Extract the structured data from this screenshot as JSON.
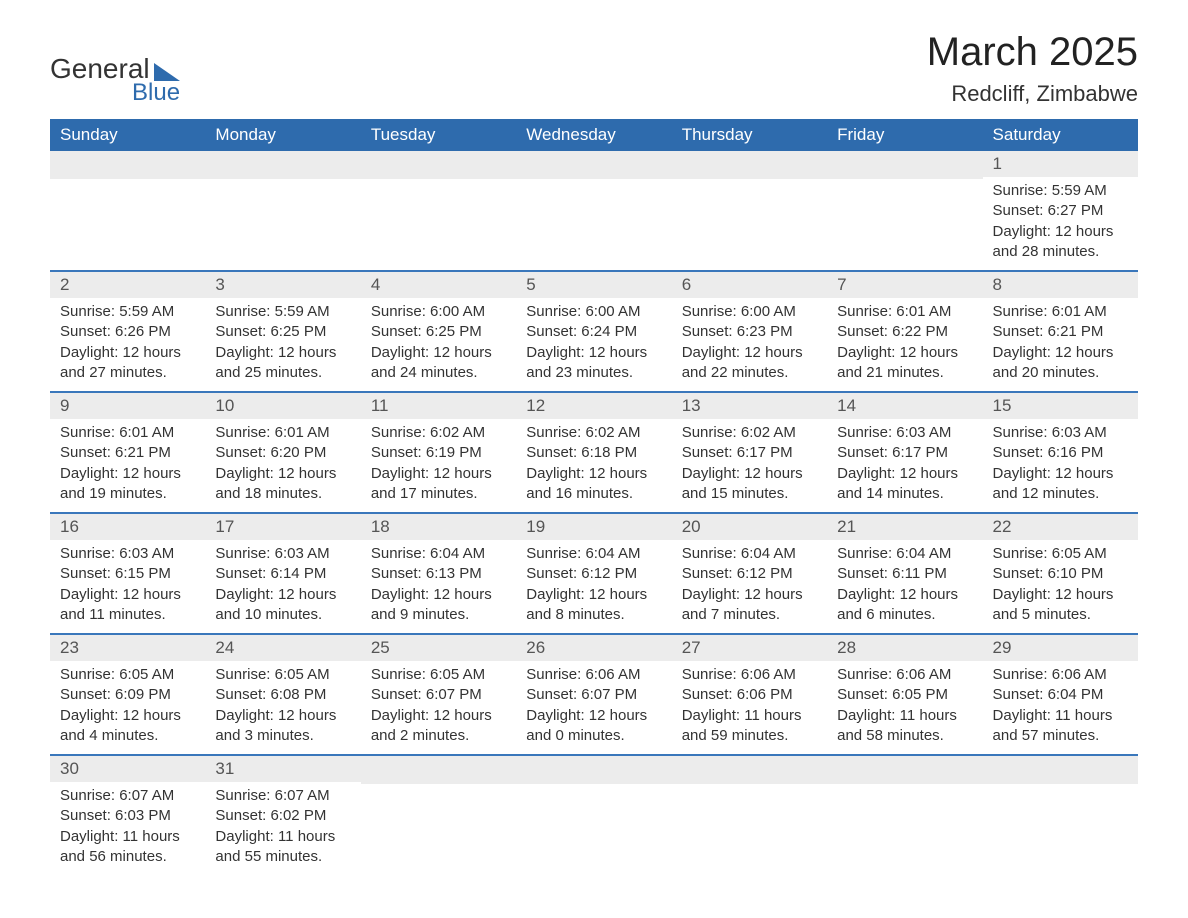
{
  "logo": {
    "text_general": "General",
    "text_blue": "Blue",
    "triangle_color": "#2e6bad"
  },
  "title": "March 2025",
  "location": "Redcliff, Zimbabwe",
  "colors": {
    "header_bg": "#2e6bad",
    "header_text": "#ffffff",
    "daynum_bg": "#ececec",
    "row_border": "#3a77bb",
    "text": "#333333"
  },
  "day_headers": [
    "Sunday",
    "Monday",
    "Tuesday",
    "Wednesday",
    "Thursday",
    "Friday",
    "Saturday"
  ],
  "weeks": [
    [
      null,
      null,
      null,
      null,
      null,
      null,
      {
        "n": "1",
        "sunrise": "Sunrise: 5:59 AM",
        "sunset": "Sunset: 6:27 PM",
        "dl1": "Daylight: 12 hours",
        "dl2": "and 28 minutes."
      }
    ],
    [
      {
        "n": "2",
        "sunrise": "Sunrise: 5:59 AM",
        "sunset": "Sunset: 6:26 PM",
        "dl1": "Daylight: 12 hours",
        "dl2": "and 27 minutes."
      },
      {
        "n": "3",
        "sunrise": "Sunrise: 5:59 AM",
        "sunset": "Sunset: 6:25 PM",
        "dl1": "Daylight: 12 hours",
        "dl2": "and 25 minutes."
      },
      {
        "n": "4",
        "sunrise": "Sunrise: 6:00 AM",
        "sunset": "Sunset: 6:25 PM",
        "dl1": "Daylight: 12 hours",
        "dl2": "and 24 minutes."
      },
      {
        "n": "5",
        "sunrise": "Sunrise: 6:00 AM",
        "sunset": "Sunset: 6:24 PM",
        "dl1": "Daylight: 12 hours",
        "dl2": "and 23 minutes."
      },
      {
        "n": "6",
        "sunrise": "Sunrise: 6:00 AM",
        "sunset": "Sunset: 6:23 PM",
        "dl1": "Daylight: 12 hours",
        "dl2": "and 22 minutes."
      },
      {
        "n": "7",
        "sunrise": "Sunrise: 6:01 AM",
        "sunset": "Sunset: 6:22 PM",
        "dl1": "Daylight: 12 hours",
        "dl2": "and 21 minutes."
      },
      {
        "n": "8",
        "sunrise": "Sunrise: 6:01 AM",
        "sunset": "Sunset: 6:21 PM",
        "dl1": "Daylight: 12 hours",
        "dl2": "and 20 minutes."
      }
    ],
    [
      {
        "n": "9",
        "sunrise": "Sunrise: 6:01 AM",
        "sunset": "Sunset: 6:21 PM",
        "dl1": "Daylight: 12 hours",
        "dl2": "and 19 minutes."
      },
      {
        "n": "10",
        "sunrise": "Sunrise: 6:01 AM",
        "sunset": "Sunset: 6:20 PM",
        "dl1": "Daylight: 12 hours",
        "dl2": "and 18 minutes."
      },
      {
        "n": "11",
        "sunrise": "Sunrise: 6:02 AM",
        "sunset": "Sunset: 6:19 PM",
        "dl1": "Daylight: 12 hours",
        "dl2": "and 17 minutes."
      },
      {
        "n": "12",
        "sunrise": "Sunrise: 6:02 AM",
        "sunset": "Sunset: 6:18 PM",
        "dl1": "Daylight: 12 hours",
        "dl2": "and 16 minutes."
      },
      {
        "n": "13",
        "sunrise": "Sunrise: 6:02 AM",
        "sunset": "Sunset: 6:17 PM",
        "dl1": "Daylight: 12 hours",
        "dl2": "and 15 minutes."
      },
      {
        "n": "14",
        "sunrise": "Sunrise: 6:03 AM",
        "sunset": "Sunset: 6:17 PM",
        "dl1": "Daylight: 12 hours",
        "dl2": "and 14 minutes."
      },
      {
        "n": "15",
        "sunrise": "Sunrise: 6:03 AM",
        "sunset": "Sunset: 6:16 PM",
        "dl1": "Daylight: 12 hours",
        "dl2": "and 12 minutes."
      }
    ],
    [
      {
        "n": "16",
        "sunrise": "Sunrise: 6:03 AM",
        "sunset": "Sunset: 6:15 PM",
        "dl1": "Daylight: 12 hours",
        "dl2": "and 11 minutes."
      },
      {
        "n": "17",
        "sunrise": "Sunrise: 6:03 AM",
        "sunset": "Sunset: 6:14 PM",
        "dl1": "Daylight: 12 hours",
        "dl2": "and 10 minutes."
      },
      {
        "n": "18",
        "sunrise": "Sunrise: 6:04 AM",
        "sunset": "Sunset: 6:13 PM",
        "dl1": "Daylight: 12 hours",
        "dl2": "and 9 minutes."
      },
      {
        "n": "19",
        "sunrise": "Sunrise: 6:04 AM",
        "sunset": "Sunset: 6:12 PM",
        "dl1": "Daylight: 12 hours",
        "dl2": "and 8 minutes."
      },
      {
        "n": "20",
        "sunrise": "Sunrise: 6:04 AM",
        "sunset": "Sunset: 6:12 PM",
        "dl1": "Daylight: 12 hours",
        "dl2": "and 7 minutes."
      },
      {
        "n": "21",
        "sunrise": "Sunrise: 6:04 AM",
        "sunset": "Sunset: 6:11 PM",
        "dl1": "Daylight: 12 hours",
        "dl2": "and 6 minutes."
      },
      {
        "n": "22",
        "sunrise": "Sunrise: 6:05 AM",
        "sunset": "Sunset: 6:10 PM",
        "dl1": "Daylight: 12 hours",
        "dl2": "and 5 minutes."
      }
    ],
    [
      {
        "n": "23",
        "sunrise": "Sunrise: 6:05 AM",
        "sunset": "Sunset: 6:09 PM",
        "dl1": "Daylight: 12 hours",
        "dl2": "and 4 minutes."
      },
      {
        "n": "24",
        "sunrise": "Sunrise: 6:05 AM",
        "sunset": "Sunset: 6:08 PM",
        "dl1": "Daylight: 12 hours",
        "dl2": "and 3 minutes."
      },
      {
        "n": "25",
        "sunrise": "Sunrise: 6:05 AM",
        "sunset": "Sunset: 6:07 PM",
        "dl1": "Daylight: 12 hours",
        "dl2": "and 2 minutes."
      },
      {
        "n": "26",
        "sunrise": "Sunrise: 6:06 AM",
        "sunset": "Sunset: 6:07 PM",
        "dl1": "Daylight: 12 hours",
        "dl2": "and 0 minutes."
      },
      {
        "n": "27",
        "sunrise": "Sunrise: 6:06 AM",
        "sunset": "Sunset: 6:06 PM",
        "dl1": "Daylight: 11 hours",
        "dl2": "and 59 minutes."
      },
      {
        "n": "28",
        "sunrise": "Sunrise: 6:06 AM",
        "sunset": "Sunset: 6:05 PM",
        "dl1": "Daylight: 11 hours",
        "dl2": "and 58 minutes."
      },
      {
        "n": "29",
        "sunrise": "Sunrise: 6:06 AM",
        "sunset": "Sunset: 6:04 PM",
        "dl1": "Daylight: 11 hours",
        "dl2": "and 57 minutes."
      }
    ],
    [
      {
        "n": "30",
        "sunrise": "Sunrise: 6:07 AM",
        "sunset": "Sunset: 6:03 PM",
        "dl1": "Daylight: 11 hours",
        "dl2": "and 56 minutes."
      },
      {
        "n": "31",
        "sunrise": "Sunrise: 6:07 AM",
        "sunset": "Sunset: 6:02 PM",
        "dl1": "Daylight: 11 hours",
        "dl2": "and 55 minutes."
      },
      null,
      null,
      null,
      null,
      null
    ]
  ]
}
